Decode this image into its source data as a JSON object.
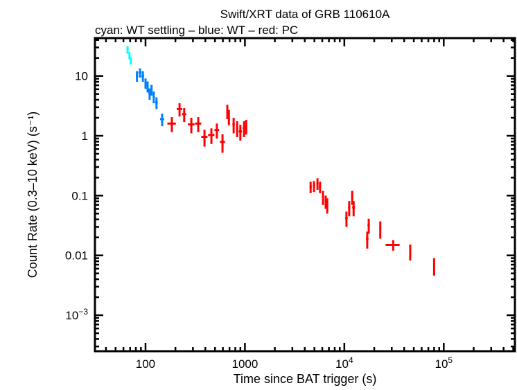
{
  "chart_data": {
    "type": "scatter",
    "title": "Swift/XRT data of GRB 110610A",
    "subtitle": "cyan: WT settling – blue: WT – red: PC",
    "xlabel": "Time since BAT trigger (s)",
    "ylabel": "Count Rate (0.3–10 keV) (s⁻¹)",
    "xscale": "log",
    "yscale": "log",
    "xlim": [
      31,
      520000
    ],
    "ylim": [
      0.00025,
      43
    ],
    "grid": false,
    "xticks": [
      {
        "value": 100,
        "label": "100"
      },
      {
        "value": 1000,
        "label": "1000"
      },
      {
        "value": 10000,
        "label": "10",
        "exp": "4"
      },
      {
        "value": 100000,
        "label": "10",
        "exp": "5"
      }
    ],
    "yticks": [
      {
        "value": 10,
        "label": "10"
      },
      {
        "value": 1,
        "label": "1"
      },
      {
        "value": 0.1,
        "label": "0.1"
      },
      {
        "value": 0.01,
        "label": "0.01"
      },
      {
        "value": 0.001,
        "label": "10",
        "exp": "−3"
      }
    ],
    "series": [
      {
        "mode": "WT settling",
        "color": "#00ffff",
        "points": [
          [
            66,
            1,
            1,
            27.6,
            4
          ],
          [
            69,
            1,
            1,
            22,
            3
          ],
          [
            71,
            1,
            1,
            18,
            2.5
          ]
        ]
      },
      {
        "mode": "WT",
        "color": "#0080ff",
        "points": [
          [
            82,
            2,
            2,
            10,
            2
          ],
          [
            88,
            3,
            3,
            11.4,
            2
          ],
          [
            94,
            3,
            3,
            10,
            2
          ],
          [
            100,
            2,
            2,
            7.6,
            1.5
          ],
          [
            105,
            2,
            2,
            6.7,
            1.4
          ],
          [
            110,
            3,
            3,
            5.1,
            1.1
          ],
          [
            115,
            2,
            2,
            5.9,
            1.2
          ],
          [
            121,
            3,
            3,
            4.5,
            1
          ],
          [
            129,
            4,
            4,
            3.6,
            0.8
          ],
          [
            147,
            7,
            7,
            1.9,
            0.45
          ]
        ]
      },
      {
        "mode": "PC",
        "color": "#ff0000",
        "points": [
          [
            184,
            18,
            18,
            1.6,
            0.45
          ],
          [
            220,
            14,
            14,
            2.8,
            0.7
          ],
          [
            245,
            12,
            12,
            2.3,
            0.6
          ],
          [
            289,
            22,
            22,
            1.55,
            0.45
          ],
          [
            339,
            25,
            25,
            1.6,
            0.45
          ],
          [
            392,
            28,
            28,
            0.96,
            0.3
          ],
          [
            460,
            34,
            34,
            1.03,
            0.3
          ],
          [
            522,
            28,
            28,
            1.25,
            0.35
          ],
          [
            595,
            35,
            35,
            0.79,
            0.27
          ],
          [
            665,
            12,
            12,
            2.6,
            0.7
          ],
          [
            690,
            14,
            14,
            2.1,
            0.6
          ],
          [
            770,
            22,
            22,
            1.55,
            0.45
          ],
          [
            835,
            20,
            20,
            1.35,
            0.4
          ],
          [
            900,
            35,
            35,
            1.18,
            0.35
          ],
          [
            980,
            30,
            30,
            1.35,
            0.4
          ],
          [
            1030,
            20,
            20,
            1.45,
            0.4
          ],
          [
            4580,
            120,
            120,
            0.14,
            0.03
          ],
          [
            4950,
            130,
            130,
            0.145,
            0.03
          ],
          [
            5370,
            140,
            140,
            0.16,
            0.035
          ],
          [
            5700,
            150,
            150,
            0.14,
            0.03
          ],
          [
            6100,
            160,
            160,
            0.095,
            0.025
          ],
          [
            6500,
            170,
            170,
            0.08,
            0.02
          ],
          [
            6730,
            150,
            150,
            0.07,
            0.02
          ],
          [
            10500,
            300,
            300,
            0.042,
            0.012
          ],
          [
            11200,
            300,
            300,
            0.063,
            0.018
          ],
          [
            12000,
            300,
            300,
            0.095,
            0.025
          ],
          [
            12400,
            400,
            400,
            0.063,
            0.018
          ],
          [
            17000,
            500,
            500,
            0.019,
            0.006
          ],
          [
            17600,
            500,
            500,
            0.032,
            0.009
          ],
          [
            23000,
            500,
            500,
            0.028,
            0.009
          ],
          [
            31000,
            5000,
            5000,
            0.015,
            0.003
          ],
          [
            46000,
            1000,
            1000,
            0.0117,
            0.0035
          ],
          [
            80000,
            1500,
            1500,
            0.0068,
            0.0022
          ]
        ]
      }
    ]
  }
}
